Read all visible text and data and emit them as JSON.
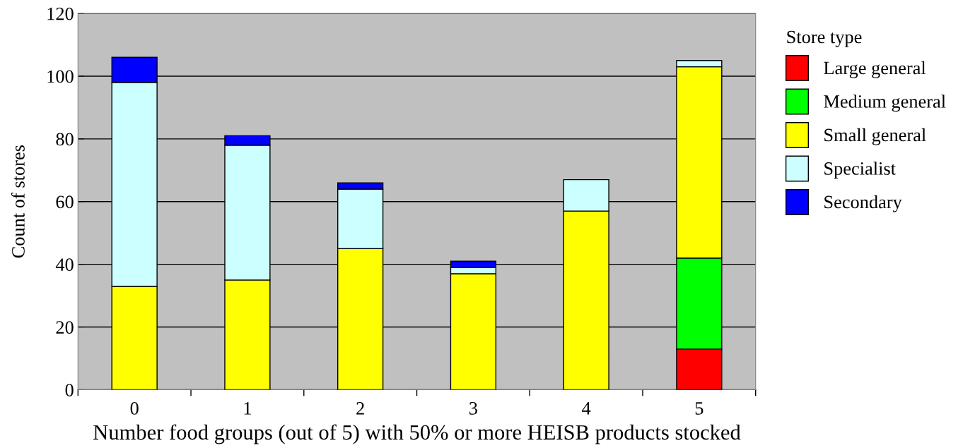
{
  "chart_data": {
    "type": "bar",
    "stacked": true,
    "xlabel": "Number food groups (out of 5) with 50% or more HEISB products stocked",
    "ylabel": "Count of stores",
    "legend_title": "Store type",
    "legend": "right",
    "grid": "y",
    "categories": [
      "0",
      "1",
      "2",
      "3",
      "4",
      "5"
    ],
    "ylim": [
      0,
      120
    ],
    "yticks": [
      0,
      20,
      40,
      60,
      80,
      100,
      120
    ],
    "series": [
      {
        "name": "Large general",
        "color": "#ff0000",
        "values": [
          null,
          null,
          null,
          null,
          null,
          13
        ]
      },
      {
        "name": "Medium general",
        "color": "#00ff00",
        "values": [
          null,
          null,
          null,
          null,
          null,
          29
        ]
      },
      {
        "name": "Small general",
        "color": "#ffff00",
        "values": [
          33,
          35,
          45,
          37,
          57,
          61
        ]
      },
      {
        "name": "Specialist",
        "color": "#ccffff",
        "values": [
          65,
          43,
          19,
          2,
          10,
          2
        ]
      },
      {
        "name": "Secondary",
        "color": "#0000ff",
        "values": [
          8,
          3,
          2,
          2,
          null,
          null
        ]
      }
    ]
  }
}
